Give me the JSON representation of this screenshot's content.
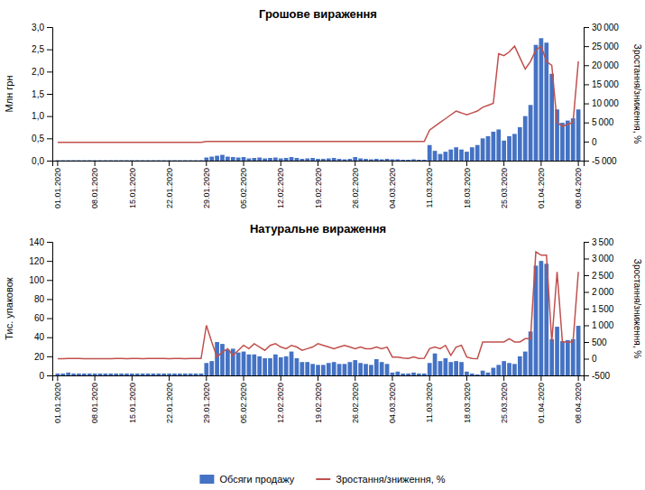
{
  "chart_data": [
    {
      "type": "bar",
      "title": "Грошове вираження",
      "ylabel": "Млн грн",
      "y2label": "Зростання/зниження, %",
      "categories": [
        "01.01.2020",
        null,
        null,
        null,
        null,
        null,
        null,
        "08.01.2020",
        null,
        null,
        null,
        null,
        null,
        null,
        "15.01.2020",
        null,
        null,
        null,
        null,
        null,
        null,
        "22.01.2020",
        null,
        null,
        null,
        null,
        null,
        null,
        "29.01.2020",
        null,
        null,
        null,
        null,
        null,
        null,
        "05.02.2020",
        null,
        null,
        null,
        null,
        null,
        null,
        "12.02.2020",
        null,
        null,
        null,
        null,
        null,
        null,
        "19.02.2020",
        null,
        null,
        null,
        null,
        null,
        null,
        "26.02.2020",
        null,
        null,
        null,
        null,
        null,
        null,
        "04.03.2020",
        null,
        null,
        null,
        null,
        null,
        null,
        "11.03.2020",
        null,
        null,
        null,
        null,
        null,
        null,
        "18.03.2020",
        null,
        null,
        null,
        null,
        null,
        null,
        "25.03.2020",
        null,
        null,
        null,
        null,
        null,
        null,
        "01.04.2020",
        null,
        null,
        null,
        null,
        null,
        null,
        "08.04.2020"
      ],
      "ylim": [
        0,
        3.0
      ],
      "yticks": [
        {
          "value": 0.0,
          "label": "0,0"
        },
        {
          "value": 0.5,
          "label": "0,5"
        },
        {
          "value": 1.0,
          "label": "1,0"
        },
        {
          "value": 1.5,
          "label": "1,5"
        },
        {
          "value": 2.0,
          "label": "2,0"
        },
        {
          "value": 2.5,
          "label": "2,5"
        },
        {
          "value": 3.0,
          "label": "3,0"
        }
      ],
      "y2lim": [
        -5000,
        30000
      ],
      "y2ticks": [
        {
          "value": -5000,
          "label": "-5 000"
        },
        0,
        {
          "value": 5000,
          "label": "5 000"
        },
        {
          "value": 10000,
          "label": "10 000"
        },
        {
          "value": 15000,
          "label": "15 000"
        },
        {
          "value": 20000,
          "label": "20 000"
        },
        {
          "value": 25000,
          "label": "25 000"
        },
        {
          "value": 30000,
          "label": "30 000"
        }
      ],
      "grid": false,
      "series": [
        {
          "type": "bar",
          "color": "#4472C4",
          "values": [
            0.01,
            0.01,
            0.01,
            0.01,
            0.01,
            0.01,
            0.01,
            0.01,
            0.01,
            0.01,
            0.01,
            0.01,
            0.01,
            0.01,
            0.01,
            0.01,
            0.01,
            0.01,
            0.01,
            0.01,
            0.01,
            0.01,
            0.01,
            0.01,
            0.01,
            0.01,
            0.01,
            0.01,
            0.07,
            0.09,
            0.11,
            0.13,
            0.09,
            0.08,
            0.07,
            0.08,
            0.05,
            0.06,
            0.07,
            0.05,
            0.06,
            0.07,
            0.05,
            0.06,
            0.08,
            0.06,
            0.04,
            0.05,
            0.06,
            0.04,
            0.04,
            0.05,
            0.06,
            0.04,
            0.03,
            0.04,
            0.08,
            0.05,
            0.04,
            0.03,
            0.04,
            0.03,
            0.04,
            0.03,
            0.03,
            0.02,
            0.02,
            0.03,
            0.02,
            0.02,
            0.35,
            0.22,
            0.15,
            0.2,
            0.25,
            0.3,
            0.25,
            0.2,
            0.3,
            0.35,
            0.5,
            0.55,
            0.65,
            0.7,
            0.45,
            0.55,
            0.6,
            0.75,
            1.0,
            1.25,
            2.6,
            2.75,
            2.65,
            1.95,
            1.15,
            0.85,
            0.9,
            0.95,
            1.15
          ]
        },
        {
          "type": "line",
          "axis": "y2",
          "color": "#C0504D",
          "values": [
            -200,
            -200,
            -200,
            -200,
            -200,
            -200,
            -200,
            -200,
            -200,
            -200,
            -200,
            -200,
            -200,
            -200,
            -200,
            -200,
            -200,
            -200,
            -200,
            -200,
            -200,
            -200,
            -200,
            -200,
            -200,
            -200,
            -200,
            -200,
            0,
            0,
            0,
            0,
            0,
            0,
            0,
            0,
            0,
            0,
            0,
            0,
            0,
            0,
            0,
            0,
            0,
            0,
            0,
            0,
            0,
            0,
            0,
            0,
            0,
            0,
            0,
            0,
            0,
            0,
            0,
            0,
            0,
            0,
            0,
            0,
            0,
            0,
            0,
            0,
            0,
            0,
            3000,
            4000,
            5000,
            6000,
            7000,
            8000,
            7500,
            7000,
            7500,
            8000,
            9000,
            9500,
            10000,
            23000,
            22500,
            23500,
            25000,
            22000,
            19000,
            21000,
            24000,
            25000,
            21000,
            20000,
            5000,
            4000,
            4500,
            5000,
            21000
          ]
        }
      ]
    },
    {
      "type": "bar",
      "title": "Натуральне вираження",
      "ylabel": "Тис. упаковок",
      "y2label": "Зростання/зниження, %",
      "categories": [
        "01.01.2020",
        null,
        null,
        null,
        null,
        null,
        null,
        "08.01.2020",
        null,
        null,
        null,
        null,
        null,
        null,
        "15.01.2020",
        null,
        null,
        null,
        null,
        null,
        null,
        "22.01.2020",
        null,
        null,
        null,
        null,
        null,
        null,
        "29.01.2020",
        null,
        null,
        null,
        null,
        null,
        null,
        "05.02.2020",
        null,
        null,
        null,
        null,
        null,
        null,
        "12.02.2020",
        null,
        null,
        null,
        null,
        null,
        null,
        "19.02.2020",
        null,
        null,
        null,
        null,
        null,
        null,
        "26.02.2020",
        null,
        null,
        null,
        null,
        null,
        null,
        "04.03.2020",
        null,
        null,
        null,
        null,
        null,
        null,
        "11.03.2020",
        null,
        null,
        null,
        null,
        null,
        null,
        "18.03.2020",
        null,
        null,
        null,
        null,
        null,
        null,
        "25.03.2020",
        null,
        null,
        null,
        null,
        null,
        null,
        "01.04.2020",
        null,
        null,
        null,
        null,
        null,
        null,
        "08.04.2020"
      ],
      "ylim": [
        0,
        140
      ],
      "yticks": [
        0,
        20,
        40,
        60,
        80,
        100,
        120,
        140
      ],
      "y2lim": [
        -500,
        3500
      ],
      "y2ticks": [
        -500,
        0,
        500,
        {
          "value": 1000,
          "label": "1 000"
        },
        {
          "value": 1500,
          "label": "1 500"
        },
        {
          "value": 2000,
          "label": "2 000"
        },
        {
          "value": 2500,
          "label": "2 500"
        },
        {
          "value": 3000,
          "label": "3 000"
        },
        {
          "value": 3500,
          "label": "3 500"
        }
      ],
      "grid": false,
      "legend": "bottom",
      "series": [
        {
          "type": "bar",
          "name": "Обсяги продажу",
          "color": "#4472C4",
          "values": [
            2,
            2,
            3,
            2,
            2,
            2,
            2,
            2,
            2,
            2,
            2,
            2,
            2,
            2,
            2,
            2,
            2,
            2,
            2,
            2,
            2,
            2,
            2,
            2,
            2,
            2,
            2,
            2,
            13,
            15,
            35,
            33,
            27,
            28,
            24,
            25,
            22,
            22,
            20,
            18,
            18,
            22,
            19,
            20,
            25,
            18,
            14,
            14,
            12,
            11,
            11,
            13,
            14,
            12,
            12,
            14,
            16,
            13,
            12,
            11,
            17,
            14,
            12,
            3,
            4,
            2,
            2,
            3,
            2,
            2,
            13,
            23,
            15,
            18,
            14,
            15,
            14,
            4,
            2,
            1,
            5,
            3,
            8,
            11,
            15,
            13,
            12,
            20,
            25,
            46,
            115,
            120,
            117,
            38,
            51,
            36,
            37,
            38,
            52
          ]
        },
        {
          "type": "line",
          "axis": "y2",
          "name": "Зростання/зниження, %",
          "color": "#C0504D",
          "values": [
            0,
            0,
            5,
            5,
            5,
            3,
            3,
            3,
            0,
            0,
            0,
            10,
            5,
            3,
            5,
            5,
            3,
            5,
            10,
            5,
            5,
            3,
            5,
            5,
            3,
            5,
            5,
            5,
            1000,
            500,
            50,
            200,
            300,
            100,
            250,
            400,
            300,
            450,
            350,
            250,
            400,
            450,
            350,
            300,
            400,
            350,
            250,
            300,
            350,
            450,
            400,
            350,
            300,
            350,
            400,
            350,
            300,
            350,
            300,
            300,
            350,
            300,
            350,
            50,
            50,
            20,
            5,
            50,
            5,
            10,
            300,
            350,
            300,
            400,
            100,
            350,
            400,
            50,
            5,
            0,
            500,
            500,
            500,
            500,
            500,
            600,
            500,
            500,
            600,
            600,
            3200,
            3100,
            3100,
            500,
            2600,
            500,
            500,
            500,
            2600
          ]
        }
      ]
    }
  ]
}
